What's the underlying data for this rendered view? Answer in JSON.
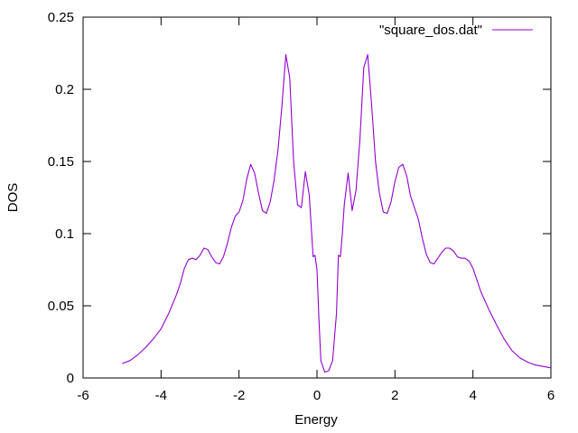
{
  "chart_data": {
    "type": "line",
    "title": "",
    "xlabel": "Energy",
    "ylabel": "DOS",
    "xlim": [
      -6,
      6
    ],
    "ylim": [
      0,
      0.25
    ],
    "x_ticks": [
      -6,
      -4,
      -2,
      0,
      2,
      4,
      6
    ],
    "y_ticks": [
      0,
      0.05,
      0.1,
      0.15,
      0.2,
      0.25
    ],
    "x_tick_labels": [
      "-6",
      "-4",
      "-2",
      "0",
      "2",
      "4",
      "6"
    ],
    "y_tick_labels": [
      "0",
      "0.05",
      "0.1",
      "0.15",
      "0.2",
      "0.25"
    ],
    "grid": false,
    "legend": {
      "position": "top-right"
    },
    "series": [
      {
        "name": "\"square_dos.dat\"",
        "color": "#9400d3",
        "points": [
          [
            -5.0,
            0.01
          ],
          [
            -4.8,
            0.012
          ],
          [
            -4.6,
            0.016
          ],
          [
            -4.4,
            0.021
          ],
          [
            -4.2,
            0.027
          ],
          [
            -4.0,
            0.034
          ],
          [
            -3.8,
            0.045
          ],
          [
            -3.6,
            0.058
          ],
          [
            -3.5,
            0.066
          ],
          [
            -3.4,
            0.076
          ],
          [
            -3.3,
            0.082
          ],
          [
            -3.2,
            0.083
          ],
          [
            -3.1,
            0.082
          ],
          [
            -3.0,
            0.085
          ],
          [
            -2.9,
            0.09
          ],
          [
            -2.8,
            0.089
          ],
          [
            -2.7,
            0.084
          ],
          [
            -2.6,
            0.08
          ],
          [
            -2.5,
            0.079
          ],
          [
            -2.4,
            0.084
          ],
          [
            -2.3,
            0.093
          ],
          [
            -2.2,
            0.104
          ],
          [
            -2.1,
            0.112
          ],
          [
            -2.0,
            0.115
          ],
          [
            -1.9,
            0.123
          ],
          [
            -1.8,
            0.138
          ],
          [
            -1.7,
            0.148
          ],
          [
            -1.6,
            0.142
          ],
          [
            -1.5,
            0.128
          ],
          [
            -1.4,
            0.116
          ],
          [
            -1.3,
            0.114
          ],
          [
            -1.2,
            0.122
          ],
          [
            -1.1,
            0.137
          ],
          [
            -1.0,
            0.158
          ],
          [
            -0.9,
            0.188
          ],
          [
            -0.8,
            0.224
          ],
          [
            -0.7,
            0.208
          ],
          [
            -0.6,
            0.15
          ],
          [
            -0.5,
            0.12
          ],
          [
            -0.4,
            0.118
          ],
          [
            -0.3,
            0.143
          ],
          [
            -0.2,
            0.127
          ],
          [
            -0.1,
            0.084
          ],
          [
            -0.05,
            0.085
          ],
          [
            0.0,
            0.075
          ],
          [
            0.05,
            0.04
          ],
          [
            0.1,
            0.012
          ],
          [
            0.2,
            0.004
          ],
          [
            0.3,
            0.005
          ],
          [
            0.4,
            0.012
          ],
          [
            0.5,
            0.045
          ],
          [
            0.55,
            0.085
          ],
          [
            0.6,
            0.084
          ],
          [
            0.65,
            0.1
          ],
          [
            0.7,
            0.12
          ],
          [
            0.8,
            0.142
          ],
          [
            0.9,
            0.116
          ],
          [
            1.0,
            0.13
          ],
          [
            1.1,
            0.165
          ],
          [
            1.2,
            0.215
          ],
          [
            1.3,
            0.224
          ],
          [
            1.4,
            0.19
          ],
          [
            1.5,
            0.15
          ],
          [
            1.6,
            0.128
          ],
          [
            1.7,
            0.115
          ],
          [
            1.8,
            0.114
          ],
          [
            1.9,
            0.122
          ],
          [
            2.0,
            0.136
          ],
          [
            2.1,
            0.146
          ],
          [
            2.2,
            0.148
          ],
          [
            2.3,
            0.14
          ],
          [
            2.4,
            0.126
          ],
          [
            2.5,
            0.118
          ],
          [
            2.6,
            0.11
          ],
          [
            2.7,
            0.097
          ],
          [
            2.8,
            0.086
          ],
          [
            2.9,
            0.08
          ],
          [
            3.0,
            0.079
          ],
          [
            3.1,
            0.083
          ],
          [
            3.2,
            0.087
          ],
          [
            3.3,
            0.09
          ],
          [
            3.4,
            0.09
          ],
          [
            3.5,
            0.088
          ],
          [
            3.6,
            0.084
          ],
          [
            3.7,
            0.083
          ],
          [
            3.8,
            0.083
          ],
          [
            3.9,
            0.081
          ],
          [
            4.0,
            0.076
          ],
          [
            4.1,
            0.068
          ],
          [
            4.2,
            0.06
          ],
          [
            4.4,
            0.048
          ],
          [
            4.6,
            0.037
          ],
          [
            4.8,
            0.027
          ],
          [
            5.0,
            0.019
          ],
          [
            5.2,
            0.014
          ],
          [
            5.4,
            0.011
          ],
          [
            5.6,
            0.009
          ],
          [
            5.8,
            0.008
          ],
          [
            6.0,
            0.007
          ]
        ]
      }
    ]
  }
}
